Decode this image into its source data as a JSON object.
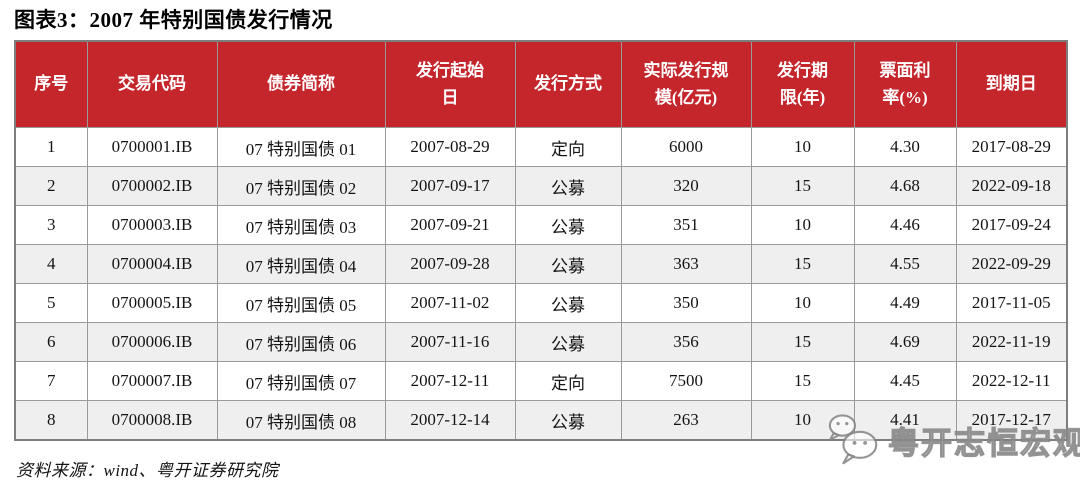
{
  "title": "图表3：2007 年特别国债发行情况",
  "table": {
    "columns": [
      "序号",
      "交易代码",
      "债券简称",
      "发行起始\n日",
      "发行方式",
      "实际发行规\n模(亿元)",
      "发行期\n限(年)",
      "票面利\n率(%)",
      "到期日"
    ],
    "rows": [
      {
        "cells": [
          "1",
          "0700001.IB",
          "07 特别国债 01",
          "2007-08-29",
          "定向",
          "6000",
          "10",
          "4.30",
          "2017-08-29"
        ]
      },
      {
        "cells": [
          "2",
          "0700002.IB",
          "07 特别国债 02",
          "2007-09-17",
          "公募",
          "320",
          "15",
          "4.68",
          "2022-09-18"
        ]
      },
      {
        "cells": [
          "3",
          "0700003.IB",
          "07 特别国债 03",
          "2007-09-21",
          "公募",
          "351",
          "10",
          "4.46",
          "2017-09-24"
        ]
      },
      {
        "cells": [
          "4",
          "0700004.IB",
          "07 特别国债 04",
          "2007-09-28",
          "公募",
          "363",
          "15",
          "4.55",
          "2022-09-29"
        ]
      },
      {
        "cells": [
          "5",
          "0700005.IB",
          "07 特别国债 05",
          "2007-11-02",
          "公募",
          "350",
          "10",
          "4.49",
          "2017-11-05"
        ]
      },
      {
        "cells": [
          "6",
          "0700006.IB",
          "07 特别国债 06",
          "2007-11-16",
          "公募",
          "356",
          "15",
          "4.69",
          "2022-11-19"
        ]
      },
      {
        "cells": [
          "7",
          "0700007.IB",
          "07 特别国债 07",
          "2007-12-11",
          "定向",
          "7500",
          "15",
          "4.45",
          "2022-12-11"
        ]
      },
      {
        "cells": [
          "8",
          "0700008.IB",
          "07 特别国债 08",
          "2007-12-14",
          "公募",
          "263",
          "10",
          "4.41",
          "2017-12-17"
        ]
      }
    ]
  },
  "source": "资料来源：wind、粤开证券研究院",
  "watermark": {
    "icon": "wechat-icon",
    "text": "粤开志恒宏观"
  },
  "colors": {
    "header_bg": "#c5262c",
    "header_text": "#ffffff",
    "row_alt_bg": "#efefef",
    "border": "#9a9a9a",
    "outer_border": "#7e7e7e"
  },
  "chart_data": {
    "type": "table",
    "title": "图表3：2007 年特别国债发行情况",
    "columns": [
      "序号",
      "交易代码",
      "债券简称",
      "发行起始日",
      "发行方式",
      "实际发行规模(亿元)",
      "发行期限(年)",
      "票面利率(%)",
      "到期日"
    ],
    "rows": [
      [
        1,
        "0700001.IB",
        "07 特别国债 01",
        "2007-08-29",
        "定向",
        6000,
        10,
        4.3,
        "2017-08-29"
      ],
      [
        2,
        "0700002.IB",
        "07 特别国债 02",
        "2007-09-17",
        "公募",
        320,
        15,
        4.68,
        "2022-09-18"
      ],
      [
        3,
        "0700003.IB",
        "07 特别国债 03",
        "2007-09-21",
        "公募",
        351,
        10,
        4.46,
        "2017-09-24"
      ],
      [
        4,
        "0700004.IB",
        "07 特别国债 04",
        "2007-09-28",
        "公募",
        363,
        15,
        4.55,
        "2022-09-29"
      ],
      [
        5,
        "0700005.IB",
        "07 特别国债 05",
        "2007-11-02",
        "公募",
        350,
        10,
        4.49,
        "2017-11-05"
      ],
      [
        6,
        "0700006.IB",
        "07 特别国债 06",
        "2007-11-16",
        "公募",
        356,
        15,
        4.69,
        "2022-11-19"
      ],
      [
        7,
        "0700007.IB",
        "07 特别国债 07",
        "2007-12-11",
        "定向",
        7500,
        15,
        4.45,
        "2022-12-11"
      ],
      [
        8,
        "0700008.IB",
        "07 特别国债 08",
        "2007-12-14",
        "公募",
        263,
        10,
        4.41,
        "2017-12-17"
      ]
    ],
    "source": "资料来源：wind、粤开证券研究院"
  }
}
